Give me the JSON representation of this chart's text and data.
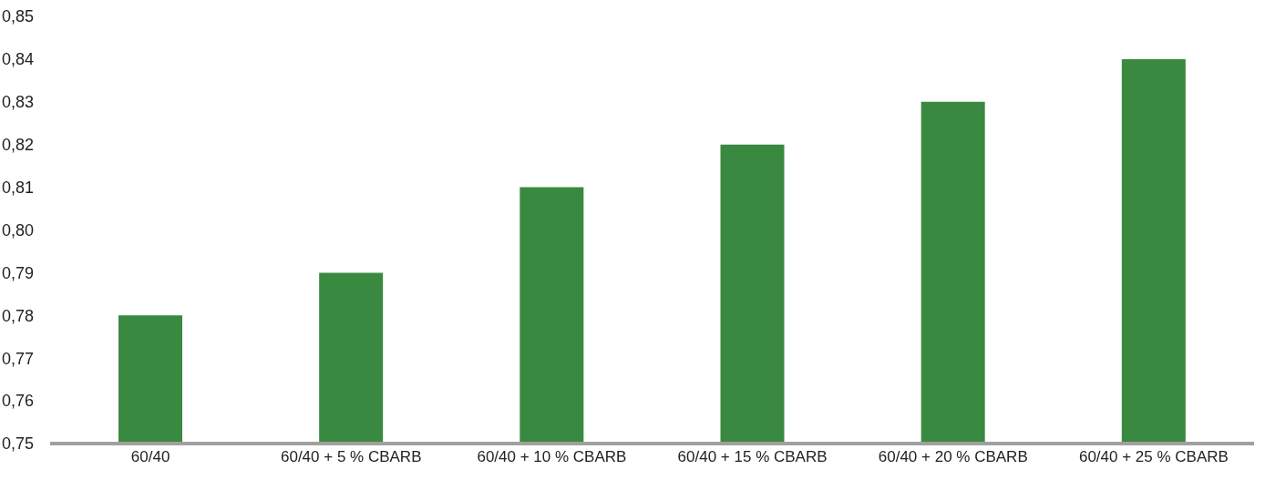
{
  "chart_data": {
    "type": "bar",
    "categories": [
      "60/40",
      "60/40 + 5 % CBARB",
      "60/40 + 10 % CBARB",
      "60/40 + 15 % CBARB",
      "60/40 + 20 % CBARB",
      "60/40 + 25 % CBARB"
    ],
    "values": [
      0.78,
      0.79,
      0.81,
      0.82,
      0.83,
      0.84
    ],
    "color": "#3a8940",
    "ylim": [
      0.75,
      0.85
    ],
    "yticks": [
      {
        "value": 0.75,
        "label": "0,75"
      },
      {
        "value": 0.76,
        "label": "0,76"
      },
      {
        "value": 0.77,
        "label": "0,77"
      },
      {
        "value": 0.78,
        "label": "0,78"
      },
      {
        "value": 0.79,
        "label": "0,79"
      },
      {
        "value": 0.8,
        "label": "0,80"
      },
      {
        "value": 0.81,
        "label": "0,81"
      },
      {
        "value": 0.82,
        "label": "0,82"
      },
      {
        "value": 0.83,
        "label": "0,83"
      },
      {
        "value": 0.84,
        "label": "0,84"
      },
      {
        "value": 0.85,
        "label": "0,85"
      }
    ],
    "grid": false
  }
}
